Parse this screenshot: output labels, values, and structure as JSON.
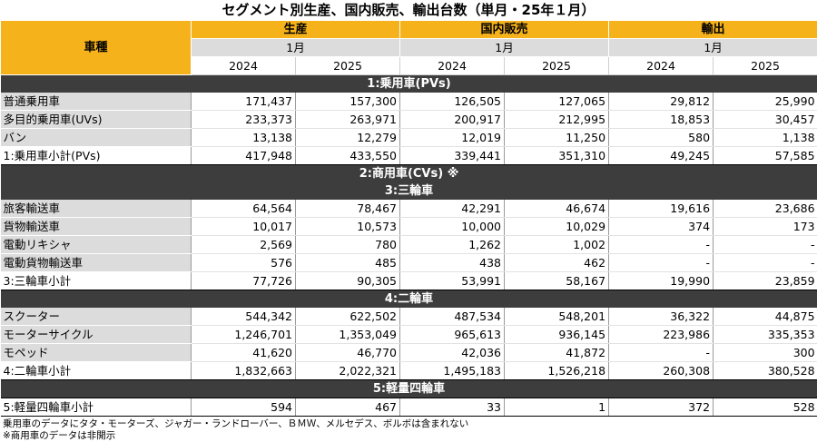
{
  "title": "セグメント別生産、国内販売、輸出台数（単月・25年１月）",
  "header": {
    "vehicle_type": "車種",
    "categories": [
      "生産",
      "国内販売",
      "輸出"
    ],
    "month": "1月",
    "years": [
      "2024",
      "2025"
    ]
  },
  "sections": [
    {
      "heading": "1:乗用車(PVs)",
      "rows": [
        {
          "label": "普通乗用車",
          "values": [
            "171,437",
            "157,300",
            "126,505",
            "127,065",
            "29,812",
            "25,990"
          ]
        },
        {
          "label": "多目的乗用車(UVs)",
          "values": [
            "233,373",
            "263,971",
            "200,917",
            "212,995",
            "18,853",
            "30,457"
          ]
        },
        {
          "label": "バン",
          "values": [
            "13,138",
            "12,279",
            "12,019",
            "11,250",
            "580",
            "1,138"
          ]
        }
      ],
      "subtotal": {
        "label": "1:乗用車小計(PVs)",
        "values": [
          "417,948",
          "433,550",
          "339,441",
          "351,310",
          "49,245",
          "57,585"
        ]
      }
    },
    {
      "heading": "2:商用車(CVs) ※",
      "rows": []
    },
    {
      "heading": "3:三輪車",
      "rows": [
        {
          "label": "旅客輸送車",
          "values": [
            "64,564",
            "78,467",
            "42,291",
            "46,674",
            "19,616",
            "23,686"
          ]
        },
        {
          "label": "貨物輸送車",
          "values": [
            "10,017",
            "10,573",
            "10,000",
            "10,029",
            "374",
            "173"
          ]
        },
        {
          "label": "電動リキシャ",
          "values": [
            "2,569",
            "780",
            "1,262",
            "1,002",
            "-",
            "-"
          ]
        },
        {
          "label": "電動貨物輸送車",
          "values": [
            "576",
            "485",
            "438",
            "462",
            "-",
            "-"
          ]
        }
      ],
      "subtotal": {
        "label": "3:三輪車小計",
        "values": [
          "77,726",
          "90,305",
          "53,991",
          "58,167",
          "19,990",
          "23,859"
        ]
      }
    },
    {
      "heading": "4:二輪車",
      "rows": [
        {
          "label": "スクーター",
          "values": [
            "544,342",
            "622,502",
            "487,534",
            "548,201",
            "36,322",
            "44,875"
          ]
        },
        {
          "label": "モーターサイクル",
          "values": [
            "1,246,701",
            "1,353,049",
            "965,613",
            "936,145",
            "223,986",
            "335,353"
          ]
        },
        {
          "label": "モペッド",
          "values": [
            "41,620",
            "46,770",
            "42,036",
            "41,872",
            "-",
            "300"
          ]
        }
      ],
      "subtotal": {
        "label": "4:二輪車小計",
        "values": [
          "1,832,663",
          "2,022,321",
          "1,495,183",
          "1,526,218",
          "260,308",
          "380,528"
        ]
      }
    },
    {
      "heading": "5:軽量四輪車",
      "rows": [],
      "subtotal": {
        "label": "5:軽量四輪車小計",
        "values": [
          "594",
          "467",
          "33",
          "1",
          "372",
          "528"
        ]
      }
    }
  ],
  "notes": [
    "乗用車のデータにタタ・モーターズ、ジャガー・ランドローバー、ＢＭＷ、メルセデス、ボルボは含まれない",
    "※商用車のデータは非開示"
  ]
}
